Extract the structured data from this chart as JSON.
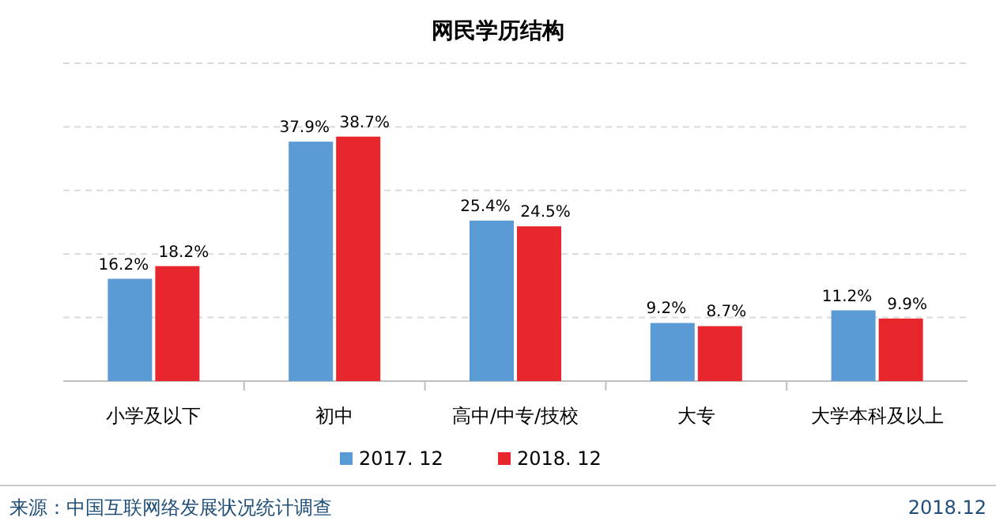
{
  "chart_data": {
    "type": "bar",
    "title": "网民学历结构",
    "categories": [
      "小学及以下",
      "初中",
      "高中/中专/技校",
      "大专",
      "大学本科及以上"
    ],
    "series": [
      {
        "name": "2017. 12",
        "color": "#5b9bd5",
        "values": [
          16.2,
          37.9,
          25.4,
          9.2,
          11.2
        ],
        "value_labels": [
          "16.2%",
          "37.9%",
          "25.4%",
          "9.2%",
          "11.2%"
        ]
      },
      {
        "name": "2018. 12",
        "color": "#e8262d",
        "values": [
          18.2,
          38.7,
          24.5,
          8.7,
          9.9
        ],
        "value_labels": [
          "18.2%",
          "38.7%",
          "24.5%",
          "8.7%",
          "9.9%"
        ]
      }
    ],
    "grid": true,
    "legend": "bottom",
    "tick_labels": "x",
    "annotations": [
      "来源：中国互联网络发展状况统计调查",
      "2018.12"
    ]
  }
}
